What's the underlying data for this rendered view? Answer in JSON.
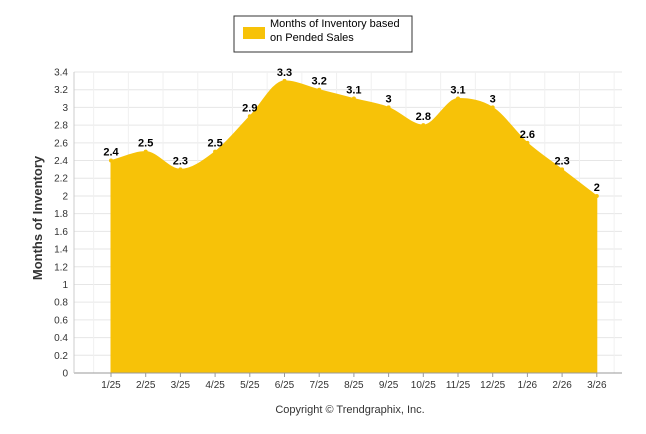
{
  "chart_data": {
    "type": "area",
    "categories": [
      "1/25",
      "2/25",
      "3/25",
      "4/25",
      "5/25",
      "6/25",
      "7/25",
      "8/25",
      "9/25",
      "10/25",
      "11/25",
      "12/25",
      "1/26",
      "2/26",
      "3/26"
    ],
    "series": [
      {
        "name": "Months of Inventory based on Pended Sales",
        "values": [
          2.4,
          2.5,
          2.3,
          2.5,
          2.9,
          3.3,
          3.2,
          3.1,
          3,
          2.8,
          3.1,
          3,
          2.6,
          2.3,
          2
        ],
        "labels": [
          "2.4",
          "2.5",
          "2.3",
          "2.5",
          "2.9",
          "3.3",
          "3.2",
          "3.1",
          "3",
          "2.8",
          "3.1",
          "3",
          "2.6",
          "2.3",
          "2"
        ],
        "color": "#F7C208"
      }
    ],
    "legend": {
      "lines": [
        "Months of Inventory based",
        "on Pended Sales"
      ],
      "placement": "top-center"
    },
    "ylabel": "Months of Inventory",
    "xlabel": "",
    "ylim": [
      0,
      3.4
    ],
    "yticks": [
      "0",
      "0.2",
      "0.4",
      "0.6",
      "0.8",
      "1",
      "1.2",
      "1.4",
      "1.6",
      "1.8",
      "2",
      "2.2",
      "2.4",
      "2.6",
      "2.8",
      "3",
      "3.2",
      "3.4"
    ],
    "grid": true
  },
  "footer": {
    "text": "Copyright © Trendgraphix, Inc."
  }
}
